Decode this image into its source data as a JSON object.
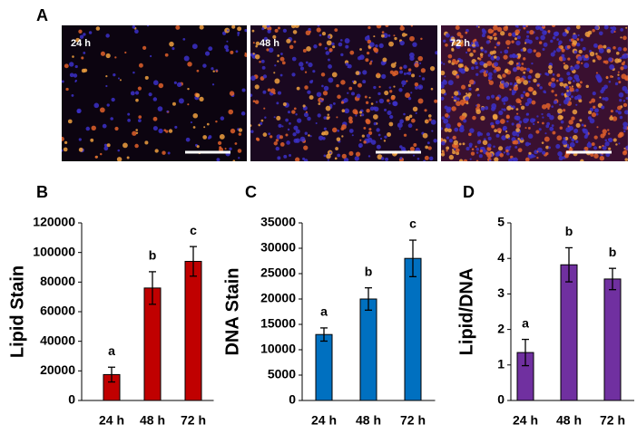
{
  "panel_a": {
    "label": "A",
    "images": [
      {
        "label": "24 h"
      },
      {
        "label": "48 h"
      },
      {
        "label": "72 h"
      }
    ]
  },
  "chart_data": [
    {
      "type": "bar",
      "panel": "B",
      "ylabel": "Lipid Stain",
      "categories": [
        "24 h",
        "48 h",
        "72 h"
      ],
      "values": [
        17500,
        76000,
        94000
      ],
      "errors": [
        5000,
        11000,
        10000
      ],
      "annotations": [
        "a",
        "b",
        "c"
      ],
      "color": "#c00000",
      "ylim": [
        0,
        120000
      ],
      "yticks": [
        0,
        20000,
        40000,
        60000,
        80000,
        100000,
        120000
      ]
    },
    {
      "type": "bar",
      "panel": "C",
      "ylabel": "DNA Stain",
      "categories": [
        "24 h",
        "48 h",
        "72 h"
      ],
      "values": [
        13000,
        20000,
        28000
      ],
      "errors": [
        1300,
        2200,
        3600
      ],
      "annotations": [
        "a",
        "b",
        "c"
      ],
      "color": "#0070c0",
      "ylim": [
        0,
        35000
      ],
      "yticks": [
        0,
        5000,
        10000,
        15000,
        20000,
        25000,
        30000,
        35000
      ]
    },
    {
      "type": "bar",
      "panel": "D",
      "ylabel": "Lipid/DNA",
      "categories": [
        "24 h",
        "48 h",
        "72 h"
      ],
      "values": [
        1.35,
        3.82,
        3.42
      ],
      "errors": [
        0.37,
        0.48,
        0.3
      ],
      "annotations": [
        "a",
        "b",
        "b"
      ],
      "color": "#7030a0",
      "ylim": [
        0,
        5
      ],
      "yticks": [
        0,
        1,
        2,
        3,
        4,
        5
      ]
    }
  ]
}
